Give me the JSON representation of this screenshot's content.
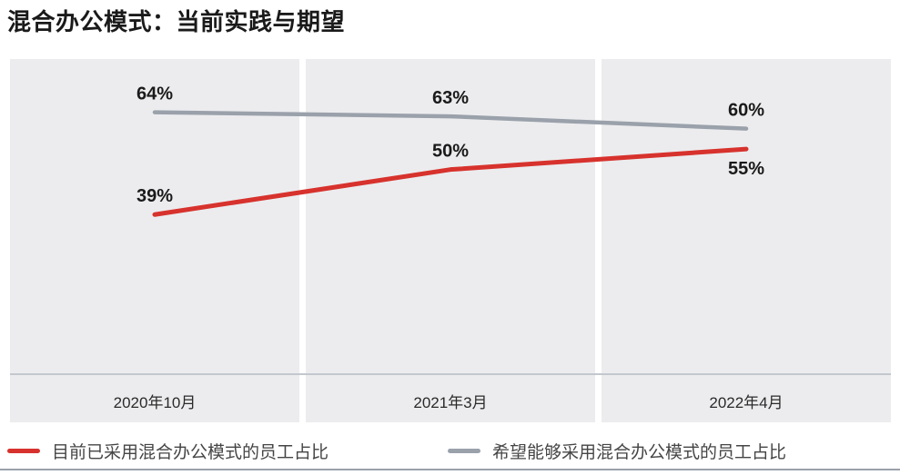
{
  "header": {
    "title": "混合办公模式：当前实践与期望"
  },
  "chart_data": {
    "type": "line",
    "title": "混合办公模式：当前实践与期望",
    "categories": [
      "2020年10月",
      "2021年3月",
      "2022年4月"
    ],
    "series": [
      {
        "name": "目前已采用混合办公模式的员工占比",
        "color": "#d7322d",
        "values": [
          39,
          50,
          55
        ],
        "data_labels": [
          "39%",
          "50%",
          "55%"
        ],
        "label_positions": [
          "above",
          "above",
          "below"
        ]
      },
      {
        "name": "希望能够采用混合办公模式的员工占比",
        "color": "#9aa1ab",
        "values": [
          64,
          63,
          60
        ],
        "data_labels": [
          "64%",
          "63%",
          "60%"
        ],
        "label_positions": [
          "above",
          "above",
          "above"
        ]
      }
    ],
    "value_suffix": "%",
    "ylim": [
      0,
      77
    ],
    "grid": false,
    "legend_position": "bottom",
    "colors": {
      "panel_background": "#ececee",
      "axis_line": "#c3c7ce",
      "value_label": "#1a1a1a",
      "bottom_rule": "#9aa0a8"
    }
  }
}
